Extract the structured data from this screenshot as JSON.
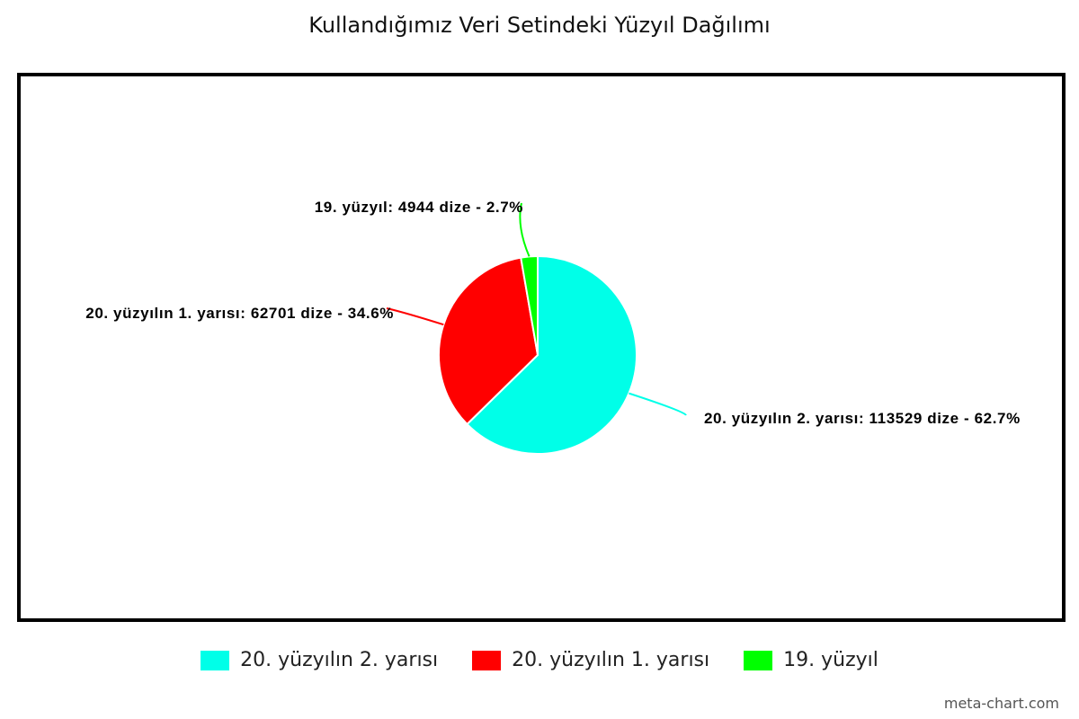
{
  "chart_data": {
    "type": "pie",
    "title": "Kullandığımız Veri Setindeki Yüzyıl Dağılımı",
    "slices": [
      {
        "name": "20. yüzyılın 2. yarısı",
        "value": 113529,
        "percent": 62.7,
        "color": "#00ffe8",
        "label": "20. yüzyılın 2. yarısı: 113529 dize  - 62.7%"
      },
      {
        "name": "20. yüzyılın 1. yarısı",
        "value": 62701,
        "percent": 34.6,
        "color": "#ff0000",
        "label": "20. yüzyılın 1. yarısı: 62701 dize  - 34.6%"
      },
      {
        "name": "19. yüzyıl",
        "value": 4944,
        "percent": 2.7,
        "color": "#00ff00",
        "label": "19. yüzyıl: 4944 dize  - 2.7%"
      }
    ],
    "legend_position": "bottom"
  },
  "credit": "meta-chart.com"
}
